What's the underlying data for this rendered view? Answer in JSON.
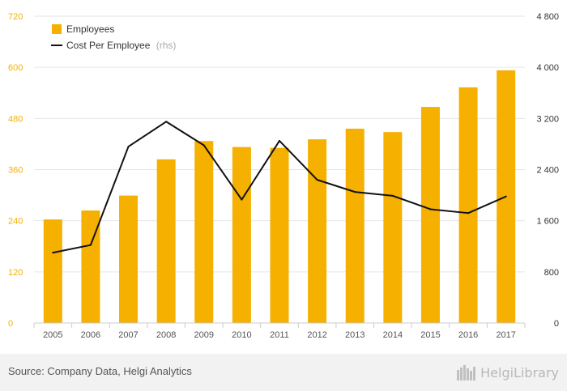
{
  "chart_data": {
    "type": "bar+line",
    "categories": [
      "2005",
      "2006",
      "2007",
      "2008",
      "2009",
      "2010",
      "2011",
      "2012",
      "2013",
      "2014",
      "2015",
      "2016",
      "2017"
    ],
    "series": [
      {
        "name": "Employees",
        "type": "bar",
        "axis": "left",
        "values": [
          243,
          264,
          299,
          384,
          427,
          413,
          411,
          431,
          456,
          448,
          507,
          553,
          593
        ]
      },
      {
        "name": "Cost Per Employee",
        "type": "line",
        "axis": "right",
        "values": [
          1100,
          1220,
          2760,
          3150,
          2780,
          1930,
          2850,
          2240,
          2050,
          1990,
          1780,
          1720,
          1980
        ]
      }
    ],
    "ylim_left": [
      0,
      720
    ],
    "yticks_left": [
      "0",
      "120",
      "240",
      "360",
      "480",
      "600",
      "720"
    ],
    "ylim_right": [
      0,
      4800
    ],
    "yticks_right": [
      "0",
      "800",
      "1 600",
      "2 400",
      "3 200",
      "4 000",
      "4 800"
    ],
    "legend": {
      "placement": "top-left",
      "items": [
        {
          "label": "Employees"
        },
        {
          "label": "Cost Per Employee",
          "suffix": "(rhs)"
        }
      ]
    },
    "grid": "horizontal",
    "colors": {
      "bar": "#f5b000",
      "line": "#111111",
      "grid": "#e6e6e6",
      "left_ticks": "#f5b000"
    }
  },
  "footer": {
    "source": "Source: Company Data, Helgi Analytics",
    "brand": "HelgiLibrary"
  }
}
